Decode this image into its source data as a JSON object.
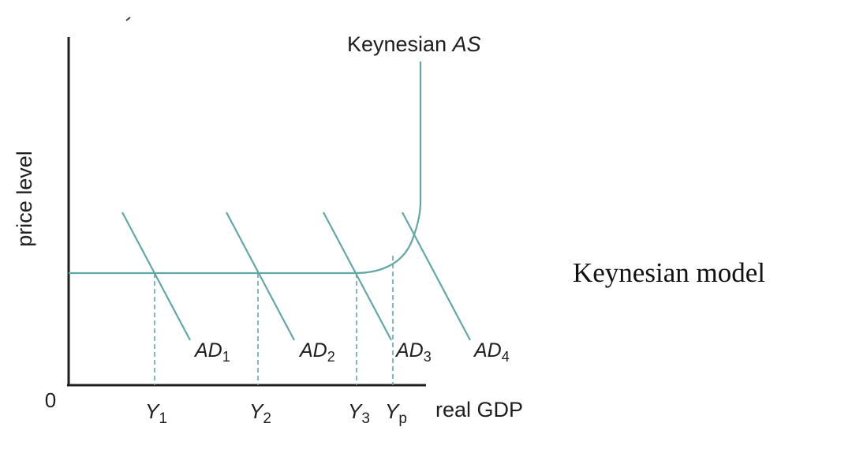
{
  "caption": "Keynesian model",
  "labels": {
    "y_axis": "price level",
    "x_axis": "real GDP",
    "origin": "0",
    "as_curve_prefix": "Keynesian ",
    "as_curve_suffix": "AS"
  },
  "ad_curves": [
    {
      "base": "AD",
      "sub": "1"
    },
    {
      "base": "AD",
      "sub": "2"
    },
    {
      "base": "AD",
      "sub": "3"
    },
    {
      "base": "AD",
      "sub": "4"
    }
  ],
  "output_levels": [
    {
      "base": "Y",
      "sub": "1"
    },
    {
      "base": "Y",
      "sub": "2"
    },
    {
      "base": "Y",
      "sub": "3"
    },
    {
      "base": "Y",
      "sub": "p"
    }
  ],
  "colors": {
    "curve": "#62a8a7",
    "axis": "#1e1e1e"
  }
}
